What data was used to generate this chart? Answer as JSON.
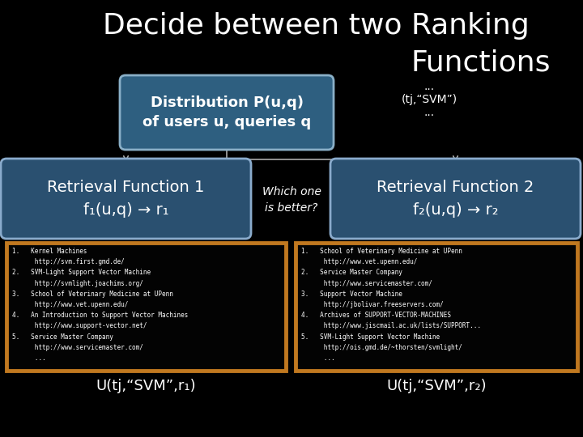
{
  "title_line1": "Decide between two Ranking",
  "title_line2": "Functions",
  "bg_color": "#000000",
  "title_color": "#ffffff",
  "title_fontsize": 26,
  "box_center_title": "Distribution P(u,q)\nof users u, queries q",
  "box_center_color": "#2e5f80",
  "box_center_border": "#8ab0c8",
  "box_left_title": "Retrieval Function 1\nf₁(u,q) → r₁",
  "box_left_color": "#2a5070",
  "box_left_border": "#8aabcc",
  "box_right_title": "Retrieval Function 2\nf₂(u,q) → r₂",
  "box_right_color": "#2a5070",
  "box_right_border": "#8aabcc",
  "which_one_text": "Which one\nis better?",
  "sidebar_dots_top": "...",
  "sidebar_label": "(tj,“SVM”)",
  "sidebar_dots_bot": "...",
  "list_box_edge": "#c07820",
  "list_box_bg": "#030303",
  "list1_lines": [
    "1.   Kernel Machines",
    "      http://svm.first.gmd.de/",
    "2.   SVM-Light Support Vector Machine",
    "      http://svmlight.joachims.org/",
    "3.   School of Veterinary Medicine at UPenn",
    "      http://www.vet.upenn.edu/",
    "4.   An Introduction to Support Vector Machines",
    "      http://www.support-vector.net/",
    "5.   Service Master Company",
    "      http://www.servicemaster.com/",
    "      ..."
  ],
  "list2_lines": [
    "1.   School of Veterinary Medicine at UPenn",
    "      http://www.vet.upenn.edu/",
    "2.   Service Master Company",
    "      http://www.servicemaster.com/",
    "3.   Support Vector Machine",
    "      http://jbolivar.freeservers.com/",
    "4.   Archives of SUPPORT-VECTOR-MACHINES",
    "      http://www.jiscmail.ac.uk/lists/SUPPORT...",
    "5.   SVM-Light Support Vector Machine",
    "      http://ois.gmd.de/~thorsten/svmlight/",
    "      ..."
  ],
  "label_left": "U(tj,“SVM”,r₁)",
  "label_right": "U(tj,“SVM”,r₂)",
  "line_color": "#aaaaaa"
}
